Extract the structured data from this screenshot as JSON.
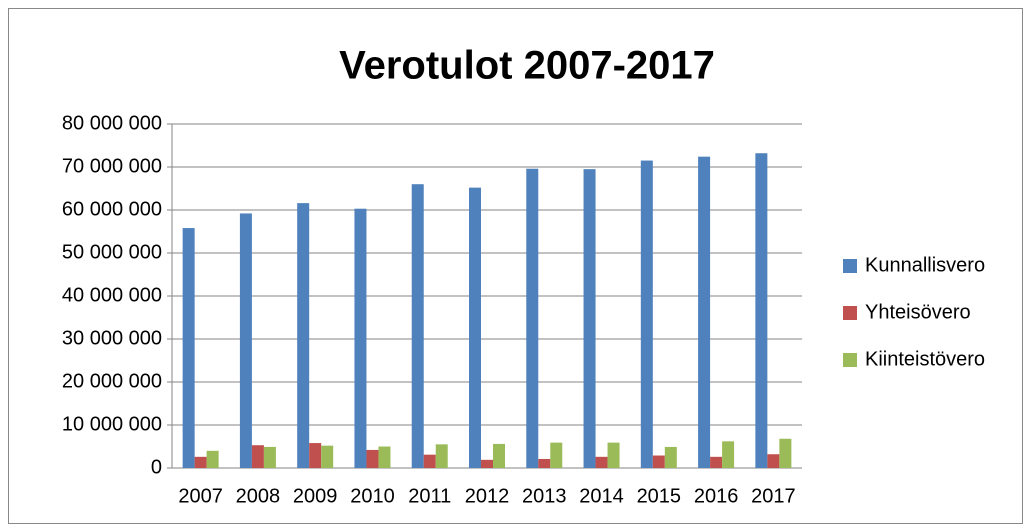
{
  "chart_data": {
    "type": "bar",
    "title": "Verotulot 2007-2017",
    "categories": [
      "2007",
      "2008",
      "2009",
      "2010",
      "2011",
      "2012",
      "2013",
      "2014",
      "2015",
      "2016",
      "2017"
    ],
    "series": [
      {
        "name": "Kunnallisvero",
        "color": "#4f81bd",
        "values": [
          55800000,
          59200000,
          61600000,
          60300000,
          66000000,
          65200000,
          69600000,
          69500000,
          71500000,
          72400000,
          73200000
        ]
      },
      {
        "name": "Yhteisövero",
        "color": "#c0504d",
        "values": [
          2600000,
          5300000,
          5800000,
          4200000,
          3100000,
          1900000,
          2100000,
          2600000,
          2900000,
          2600000,
          3200000
        ]
      },
      {
        "name": "Kiinteistövero",
        "color": "#9bbb59",
        "values": [
          4000000,
          4900000,
          5200000,
          5000000,
          5500000,
          5600000,
          5900000,
          5900000,
          4900000,
          6200000,
          6800000
        ]
      }
    ],
    "ylim": [
      0,
      80000000
    ],
    "yticks": [
      0,
      {
        "value": 10000000,
        "label": "10 000 000"
      },
      {
        "value": 20000000,
        "label": "20 000 000"
      },
      {
        "value": 30000000,
        "label": "30 000 000"
      },
      {
        "value": 40000000,
        "label": "40 000 000"
      },
      {
        "value": 50000000,
        "label": "50 000 000"
      },
      {
        "value": 60000000,
        "label": "60 000 000"
      },
      {
        "value": 70000000,
        "label": "70 000 000"
      },
      {
        "value": 80000000,
        "label": "80 000 000"
      }
    ],
    "grid": true,
    "legend": "right"
  }
}
